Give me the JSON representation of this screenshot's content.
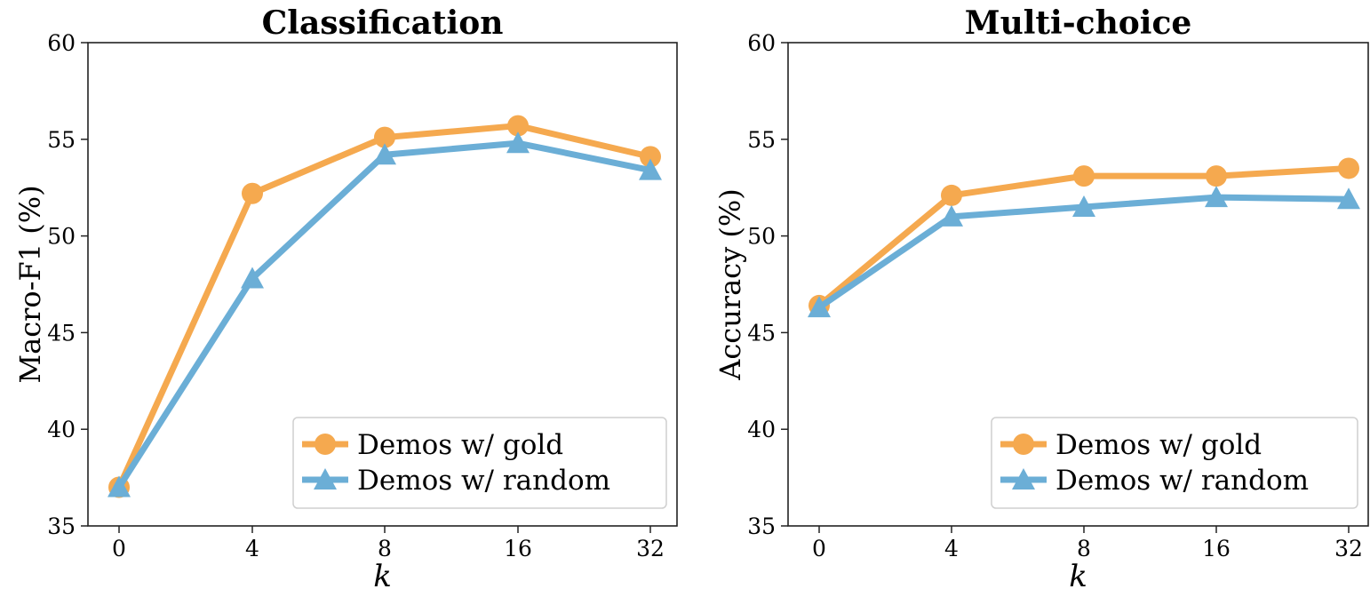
{
  "chart_data": [
    {
      "type": "line",
      "title": "Classification",
      "xlabel": "k",
      "ylabel": "Macro-F1 (%)",
      "categories": [
        "0",
        "4",
        "8",
        "16",
        "32"
      ],
      "ylim": [
        35,
        60
      ],
      "yticks": [
        "35",
        "40",
        "45",
        "50",
        "55",
        "60"
      ],
      "legend_position": "lower-right",
      "series": [
        {
          "name": "Demos w/ gold",
          "color": "#F5A94F",
          "marker": "circle",
          "values": [
            37.0,
            52.2,
            55.1,
            55.7,
            54.1
          ]
        },
        {
          "name": "Demos w/ random",
          "color": "#6BAED6",
          "marker": "triangle",
          "values": [
            37.0,
            47.8,
            54.2,
            54.8,
            53.4
          ]
        }
      ]
    },
    {
      "type": "line",
      "title": "Multi-choice",
      "xlabel": "k",
      "ylabel": "Accuracy (%)",
      "categories": [
        "0",
        "4",
        "8",
        "16",
        "32"
      ],
      "ylim": [
        35,
        60
      ],
      "yticks": [
        "35",
        "40",
        "45",
        "50",
        "55",
        "60"
      ],
      "legend_position": "lower-right",
      "series": [
        {
          "name": "Demos w/ gold",
          "color": "#F5A94F",
          "marker": "circle",
          "values": [
            46.4,
            52.1,
            53.1,
            53.1,
            53.5
          ]
        },
        {
          "name": "Demos w/ random",
          "color": "#6BAED6",
          "marker": "triangle",
          "values": [
            46.3,
            51.0,
            51.5,
            52.0,
            51.9
          ]
        }
      ]
    }
  ]
}
